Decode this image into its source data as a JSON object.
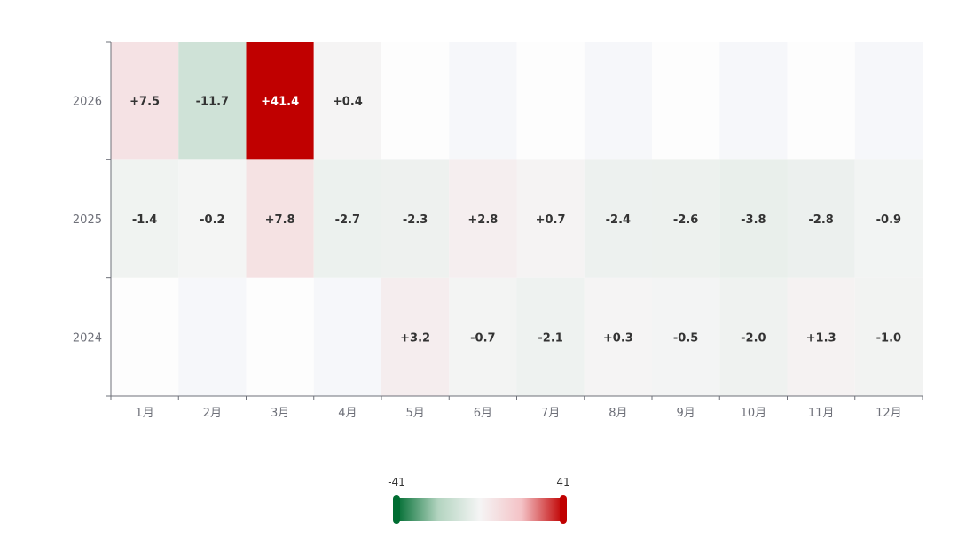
{
  "chart_data": {
    "type": "heatmap",
    "x_categories": [
      "1月",
      "2月",
      "3月",
      "4月",
      "5月",
      "6月",
      "7月",
      "8月",
      "9月",
      "10月",
      "11月",
      "12月"
    ],
    "y_categories": [
      "2024",
      "2025",
      "2026"
    ],
    "values": {
      "2026": [
        7.5,
        -11.7,
        41.4,
        0.4,
        null,
        null,
        null,
        null,
        null,
        null,
        null,
        null
      ],
      "2025": [
        -1.4,
        -0.2,
        7.8,
        -2.7,
        -2.3,
        2.8,
        0.7,
        -2.4,
        -2.6,
        -3.8,
        -2.8,
        -0.9
      ],
      "2024": [
        null,
        null,
        null,
        null,
        3.2,
        -0.7,
        -2.1,
        0.3,
        -0.5,
        -2.0,
        1.3,
        -1.0
      ]
    },
    "labels": {
      "2026": [
        "+7.5",
        "-11.7",
        "+41.4",
        "+0.4",
        "",
        "",
        "",
        "",
        "",
        "",
        "",
        ""
      ],
      "2025": [
        "-1.4",
        "-0.2",
        "+7.8",
        "-2.7",
        "-2.3",
        "+2.8",
        "+0.7",
        "-2.4",
        "-2.6",
        "-3.8",
        "-2.8",
        "-0.9"
      ],
      "2024": [
        "",
        "",
        "",
        "",
        "+3.2",
        "-0.7",
        "-2.1",
        "+0.3",
        "-0.5",
        "-2.0",
        "+1.3",
        "-1.0"
      ]
    },
    "visual_map": {
      "min": -41,
      "max": 41,
      "min_label": "-41",
      "max_label": "41",
      "colors": [
        "#006d32",
        "#b3d4c0",
        "#f5f5f5",
        "#f4c2c6",
        "#c00000"
      ]
    },
    "empty_cell_color": "#f6f7fa"
  }
}
